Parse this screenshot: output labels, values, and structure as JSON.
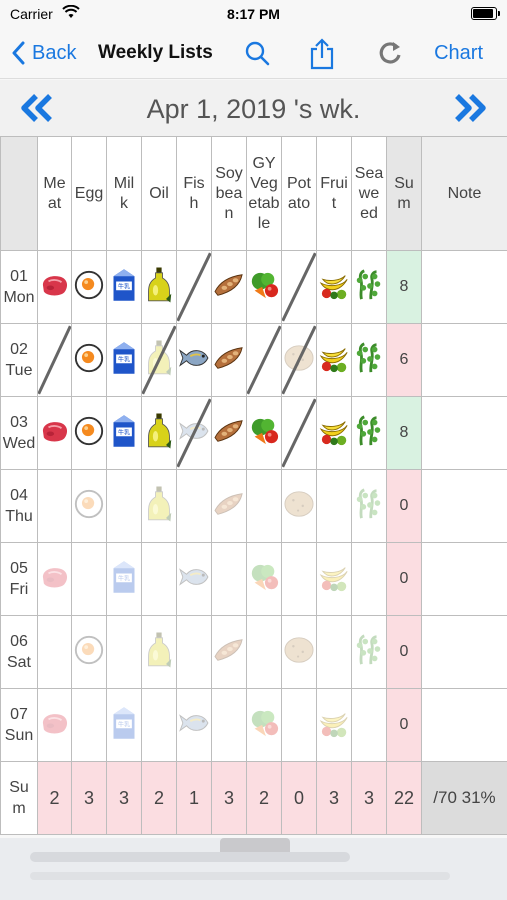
{
  "status_bar": {
    "carrier": "Carrier",
    "time": "8:17 PM"
  },
  "nav": {
    "back_label": "Back",
    "title": "Weekly Lists",
    "chart_label": "Chart"
  },
  "week": {
    "label": "Apr 1, 2019 's wk."
  },
  "columns": [
    {
      "key": "meat",
      "label": "Me\nat"
    },
    {
      "key": "egg",
      "label": "Egg"
    },
    {
      "key": "milk",
      "label": "Mil\nk"
    },
    {
      "key": "oil",
      "label": "Oil"
    },
    {
      "key": "fish",
      "label": "Fis\nh"
    },
    {
      "key": "soybean",
      "label": "Soy\nbea\nn"
    },
    {
      "key": "gyveg",
      "label": "GY\nVeg\netab\nle"
    },
    {
      "key": "potato",
      "label": "Pot\nato"
    },
    {
      "key": "fruit",
      "label": "Frui\nt"
    },
    {
      "key": "seaweed",
      "label": "Sea\nwe\ned"
    }
  ],
  "sum_header": "Su\nm",
  "note_header": "Note",
  "days": [
    {
      "label": "01\nMon",
      "sum": "8",
      "cells": [
        "on",
        "on",
        "on",
        "on",
        "x",
        "on",
        "on",
        "x",
        "on",
        "on"
      ]
    },
    {
      "label": "02\nTue",
      "sum": "6",
      "cells": [
        "x",
        "on",
        "on",
        "xf",
        "on",
        "on",
        "x",
        "xf",
        "on",
        "on"
      ]
    },
    {
      "label": "03\nWed",
      "sum": "8",
      "cells": [
        "on",
        "on",
        "on",
        "on",
        "xf",
        "on",
        "on",
        "x",
        "on",
        "on"
      ]
    },
    {
      "label": "04\nThu",
      "sum": "0",
      "cells": [
        "empty",
        "off",
        "empty",
        "off",
        "empty",
        "off",
        "empty",
        "off",
        "empty",
        "off"
      ]
    },
    {
      "label": "05\nFri",
      "sum": "0",
      "cells": [
        "off",
        "empty",
        "off",
        "empty",
        "off",
        "empty",
        "off",
        "empty",
        "off",
        "empty"
      ]
    },
    {
      "label": "06\nSat",
      "sum": "0",
      "cells": [
        "empty",
        "off",
        "empty",
        "off",
        "empty",
        "off",
        "empty",
        "off",
        "empty",
        "off"
      ]
    },
    {
      "label": "07\nSun",
      "sum": "0",
      "cells": [
        "off",
        "empty",
        "off",
        "empty",
        "off",
        "empty",
        "off",
        "empty",
        "off",
        "empty"
      ]
    }
  ],
  "totals": {
    "label": "Su\nm",
    "values": [
      "2",
      "3",
      "3",
      "2",
      "1",
      "3",
      "2",
      "0",
      "3",
      "3"
    ],
    "sum": "22",
    "percent": "/70 31%"
  },
  "colors": {
    "accent": "#1a78e0",
    "sum_good": "#d9f2e1",
    "sum_bad": "#fbdde1"
  },
  "icons": {
    "meat": "meat-icon",
    "egg": "egg-icon",
    "milk": "milk-carton-icon",
    "oil": "oil-bottle-icon",
    "fish": "fish-icon",
    "soybean": "soybean-icon",
    "gyveg": "vegetables-icon",
    "potato": "potato-icon",
    "fruit": "fruit-icon",
    "seaweed": "seaweed-icon"
  }
}
